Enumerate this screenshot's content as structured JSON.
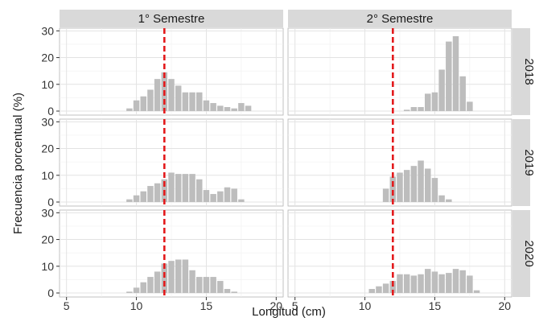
{
  "chart_data": {
    "type": "bar",
    "xlabel": "Longitud (cm)",
    "ylabel": "Frecuencia porcentual (%)",
    "xlim": [
      4.5,
      20.5
    ],
    "ylim": [
      -1.5,
      31
    ],
    "x_ticks": [
      5,
      10,
      15,
      20
    ],
    "y_ticks": [
      0,
      10,
      20,
      30
    ],
    "bin_width": 0.5,
    "reference_line": {
      "x": 12,
      "color": "#e31a1c",
      "style": "dashed"
    },
    "grid": true,
    "bar_color": "#bdbdbd",
    "strip_color": "#d9d9d9",
    "columns": [
      "1° Semestre",
      "2° Semestre"
    ],
    "rows": [
      "2018",
      "2019",
      "2020"
    ],
    "panels": [
      {
        "column": "1° Semestre",
        "row": "2018",
        "x": [
          9.5,
          10,
          10.5,
          11,
          11.5,
          12,
          12.5,
          13,
          13.5,
          14,
          14.5,
          15,
          15.5,
          16,
          16.5,
          17,
          17.5,
          18
        ],
        "values": [
          1,
          4,
          5.5,
          8,
          12,
          14.5,
          12,
          9.5,
          7,
          7,
          7,
          4,
          3,
          2,
          1.5,
          1,
          3,
          2
        ]
      },
      {
        "column": "2° Semestre",
        "row": "2018",
        "x": [
          13,
          13.5,
          14,
          14.5,
          15,
          15.5,
          16,
          16.5,
          17,
          17.5
        ],
        "values": [
          0.5,
          1.5,
          1.5,
          6.5,
          7,
          15.5,
          26,
          28,
          13,
          3.5
        ]
      },
      {
        "column": "1° Semestre",
        "row": "2019",
        "x": [
          9.5,
          10,
          10.5,
          11,
          11.5,
          12,
          12.5,
          13,
          13.5,
          14,
          14.5,
          15,
          15.5,
          16,
          16.5,
          17,
          17.5
        ],
        "values": [
          1,
          2.5,
          4,
          6,
          7,
          8.5,
          11,
          10.5,
          10.5,
          10.5,
          8.5,
          4.5,
          3,
          4,
          5.5,
          5,
          1
        ]
      },
      {
        "column": "2° Semestre",
        "row": "2019",
        "x": [
          11.5,
          12,
          12.5,
          13,
          13.5,
          14,
          14.5,
          15,
          15.5,
          16
        ],
        "values": [
          5,
          9.5,
          11,
          12,
          13.5,
          15.5,
          12.5,
          9,
          2.5,
          1
        ]
      },
      {
        "column": "1° Semestre",
        "row": "2020",
        "x": [
          9.5,
          10,
          10.5,
          11,
          11.5,
          12,
          12.5,
          13,
          13.5,
          14,
          14.5,
          15,
          15.5,
          16,
          16.5,
          17
        ],
        "values": [
          0.5,
          2,
          4,
          6,
          8,
          11,
          12,
          12.5,
          12.5,
          8.5,
          6,
          6,
          6,
          4.5,
          1.5,
          0.5
        ]
      },
      {
        "column": "2° Semestre",
        "row": "2020",
        "x": [
          10.5,
          11,
          11.5,
          12,
          12.5,
          13,
          13.5,
          14,
          14.5,
          15,
          15.5,
          16,
          16.5,
          17,
          17.5,
          18
        ],
        "values": [
          1.5,
          2.5,
          3.5,
          4.5,
          7,
          7,
          6.5,
          7,
          9,
          8,
          7,
          7.5,
          9,
          8.5,
          6.5,
          1
        ]
      }
    ]
  }
}
